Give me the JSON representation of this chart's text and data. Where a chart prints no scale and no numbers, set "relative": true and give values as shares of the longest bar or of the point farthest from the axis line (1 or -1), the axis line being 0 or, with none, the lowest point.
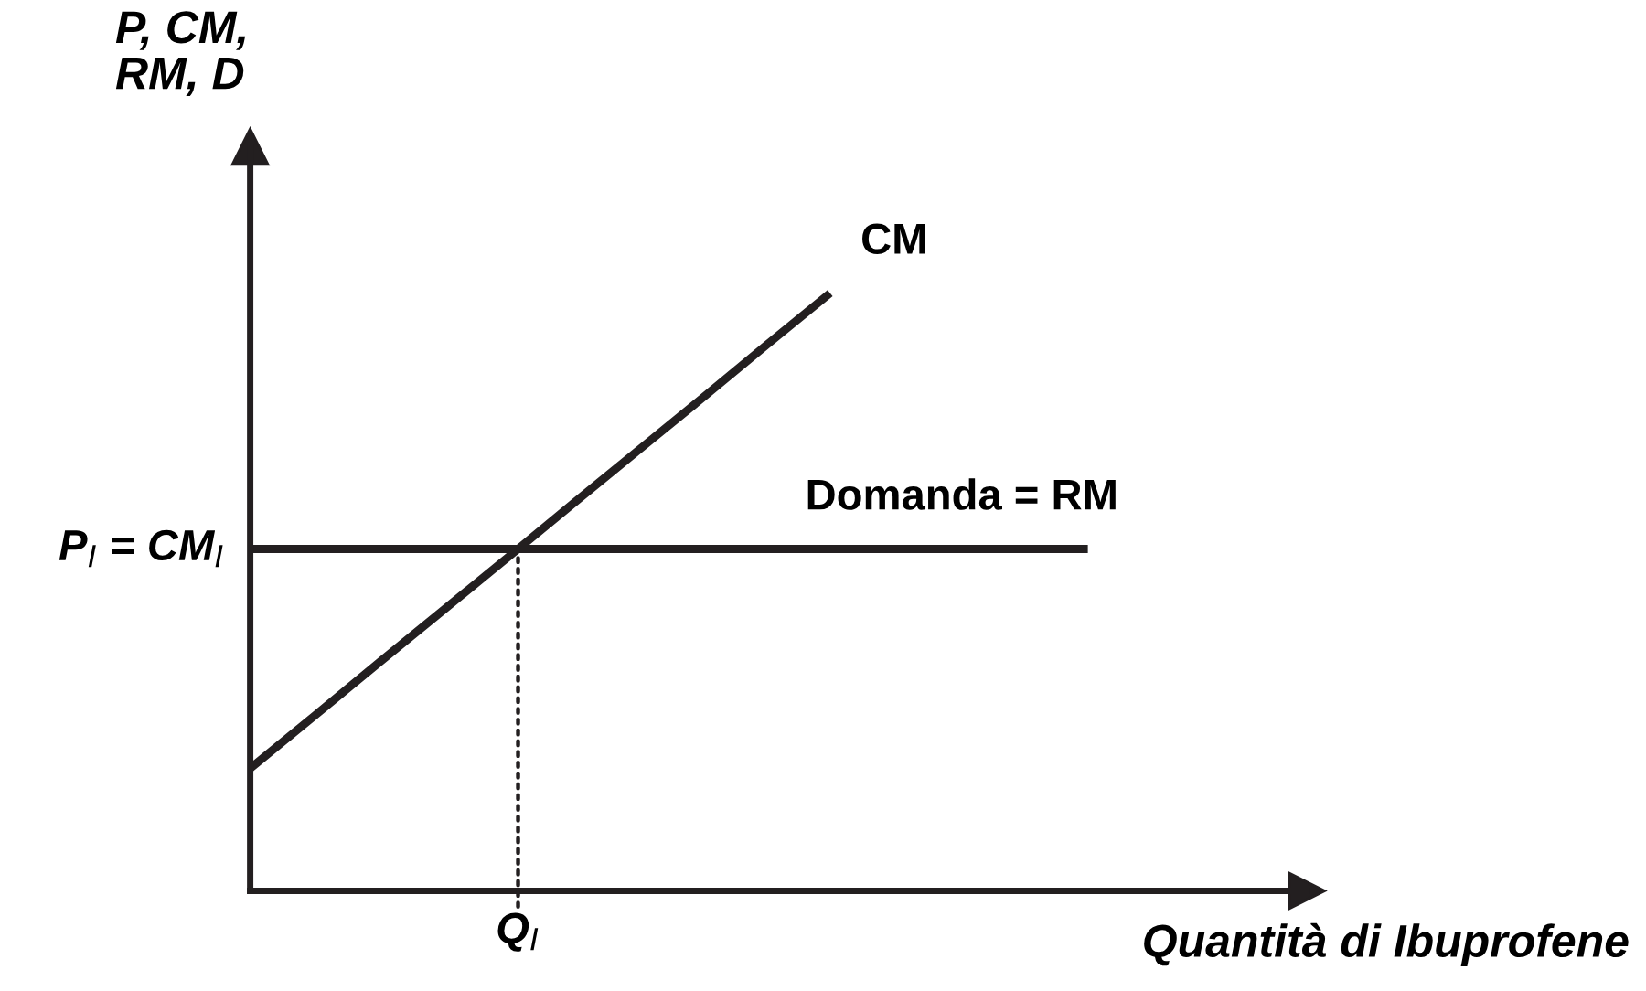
{
  "chart_data": {
    "type": "line",
    "relative": true,
    "xlabel": "Quantità di Ibuprofene",
    "ylabel": "P, CM,\nRM, D",
    "marker": "none",
    "categories": [
      null,
      null,
      null,
      null,
      null,
      null,
      null,
      null,
      null,
      null,
      null,
      null,
      null,
      null,
      null,
      null,
      null
    ],
    "series": [
      {
        "name": "CM",
        "color": "#231f20",
        "values": [
          0.205,
          0.293,
          0.382,
          0.47,
          0.558,
          0.647,
          0.735,
          0.823,
          0.912,
          1.0,
          null,
          null,
          null,
          null,
          null,
          null,
          null
        ]
      },
      {
        "name": "Domanda = RM",
        "color": "#231f20",
        "values": [
          0.572,
          0.572,
          0.572,
          0.572,
          0.572,
          0.572,
          0.572,
          0.572,
          0.572,
          0.572,
          0.572,
          0.572,
          0.572,
          0.572,
          null,
          null,
          null
        ]
      }
    ],
    "annotations": [
      "P$_{I}$ = CM$_{I}$",
      {
        "text": "Q$_{I}$",
        "y": 0.572
      }
    ]
  }
}
